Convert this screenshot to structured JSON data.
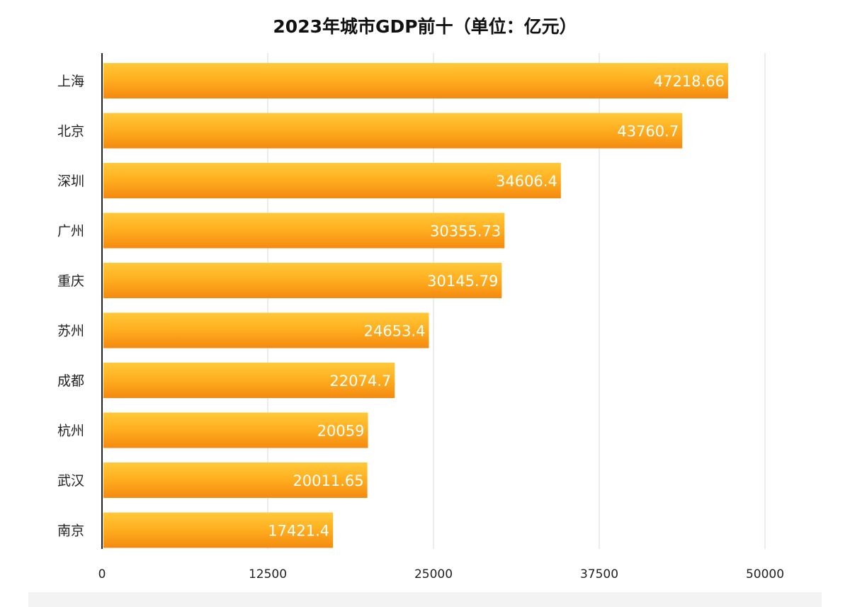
{
  "chart_data": {
    "type": "bar",
    "orientation": "horizontal",
    "title": "2023年城市GDP前十（单位：亿元）",
    "xlabel": "",
    "ylabel": "",
    "categories": [
      "上海",
      "北京",
      "深圳",
      "广州",
      "重庆",
      "苏州",
      "成都",
      "杭州",
      "武汉",
      "南京"
    ],
    "values": [
      47218.66,
      43760.7,
      34606.4,
      30355.73,
      30145.79,
      24653.4,
      22074.7,
      20059,
      20011.65,
      17421.4
    ],
    "value_labels": [
      "47218.66",
      "43760.7",
      "34606.4",
      "30355.73",
      "30145.79",
      "24653.4",
      "22074.7",
      "20059",
      "20011.65",
      "17421.4"
    ],
    "xlim": [
      0,
      50000
    ],
    "xticks": [
      0,
      12500,
      25000,
      37500,
      50000
    ],
    "xtick_labels": [
      "0",
      "12500",
      "25000",
      "37500",
      "50000"
    ],
    "grid": "vertical",
    "legend": "none",
    "colors": {
      "bar_top": "#FFC93A",
      "bar_mid": "#FFB020",
      "bar_bottom": "#F48A10",
      "label": "#ffffff",
      "grid": "#d9d9d9",
      "axis": "#222222"
    }
  }
}
